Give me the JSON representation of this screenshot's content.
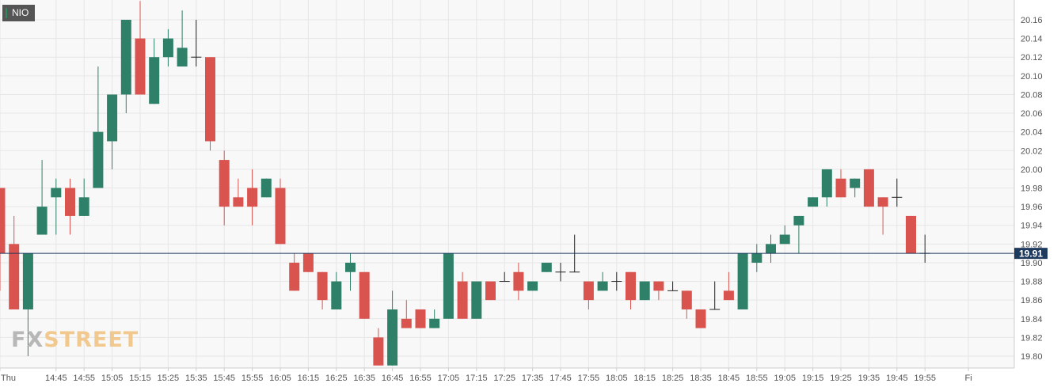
{
  "symbol": "NIO",
  "logo": {
    "part1": "FX",
    "part2": "STREET"
  },
  "colors": {
    "up": "#2e8069",
    "down": "#d9534f",
    "doji": "#222222",
    "last_price_line": "#1f3a5f",
    "grid": "#e6e6e6"
  },
  "chart_data": {
    "type": "candlestick",
    "ylim": [
      19.79,
      20.18
    ],
    "y_ticks": [
      "19.80",
      "19.82",
      "19.84",
      "19.86",
      "19.88",
      "19.90",
      "19.92",
      "19.94",
      "19.96",
      "19.98",
      "20.00",
      "20.02",
      "20.04",
      "20.06",
      "20.08",
      "20.10",
      "20.12",
      "20.14",
      "20.16"
    ],
    "x_ticks": [
      {
        "label": "Thu",
        "i": 0
      },
      {
        "label": "14:45",
        "i": 4
      },
      {
        "label": "14:55",
        "i": 6
      },
      {
        "label": "15:05",
        "i": 8
      },
      {
        "label": "15:15",
        "i": 10
      },
      {
        "label": "15:25",
        "i": 12
      },
      {
        "label": "15:35",
        "i": 14
      },
      {
        "label": "15:45",
        "i": 16
      },
      {
        "label": "15:55",
        "i": 18
      },
      {
        "label": "16:05",
        "i": 20
      },
      {
        "label": "16:15",
        "i": 22
      },
      {
        "label": "16:25",
        "i": 24
      },
      {
        "label": "16:35",
        "i": 26
      },
      {
        "label": "16:45",
        "i": 28
      },
      {
        "label": "16:55",
        "i": 30
      },
      {
        "label": "17:05",
        "i": 32
      },
      {
        "label": "17:15",
        "i": 34
      },
      {
        "label": "17:25",
        "i": 36
      },
      {
        "label": "17:35",
        "i": 38
      },
      {
        "label": "17:45",
        "i": 40
      },
      {
        "label": "17:55",
        "i": 42
      },
      {
        "label": "18:05",
        "i": 44
      },
      {
        "label": "18:15",
        "i": 46
      },
      {
        "label": "18:25",
        "i": 48
      },
      {
        "label": "18:35",
        "i": 50
      },
      {
        "label": "18:45",
        "i": 52
      },
      {
        "label": "18:55",
        "i": 54
      },
      {
        "label": "19:05",
        "i": 56
      },
      {
        "label": "19:15",
        "i": 58
      },
      {
        "label": "19:25",
        "i": 60
      },
      {
        "label": "19:35",
        "i": 62
      },
      {
        "label": "19:45",
        "i": 64
      },
      {
        "label": "19:55",
        "i": 66
      },
      {
        "label": "Fi",
        "i": 69.1
      }
    ],
    "last_price": 19.91,
    "last_price_label": "19.91",
    "candles": [
      {
        "o": 19.98,
        "h": 19.98,
        "l": 19.87,
        "c": 19.91
      },
      {
        "o": 19.92,
        "h": 19.95,
        "l": 19.85,
        "c": 19.85
      },
      {
        "o": 19.85,
        "h": 19.91,
        "l": 19.8,
        "c": 19.91
      },
      {
        "o": 19.93,
        "h": 20.01,
        "l": 19.93,
        "c": 19.96
      },
      {
        "o": 19.97,
        "h": 19.99,
        "l": 19.93,
        "c": 19.98
      },
      {
        "o": 19.98,
        "h": 19.99,
        "l": 19.93,
        "c": 19.95
      },
      {
        "o": 19.95,
        "h": 19.99,
        "l": 19.95,
        "c": 19.97
      },
      {
        "o": 19.98,
        "h": 20.11,
        "l": 19.98,
        "c": 20.04
      },
      {
        "o": 20.03,
        "h": 20.08,
        "l": 20.0,
        "c": 20.08
      },
      {
        "o": 20.08,
        "h": 20.16,
        "l": 20.06,
        "c": 20.16
      },
      {
        "o": 20.14,
        "h": 20.18,
        "l": 20.08,
        "c": 20.08
      },
      {
        "o": 20.07,
        "h": 20.14,
        "l": 20.07,
        "c": 20.12
      },
      {
        "o": 20.12,
        "h": 20.15,
        "l": 20.11,
        "c": 20.14
      },
      {
        "o": 20.11,
        "h": 20.17,
        "l": 20.11,
        "c": 20.13
      },
      {
        "o": 20.12,
        "h": 20.16,
        "l": 20.11,
        "c": 20.12
      },
      {
        "o": 20.12,
        "h": 20.12,
        "l": 20.02,
        "c": 20.03
      },
      {
        "o": 20.01,
        "h": 20.02,
        "l": 19.94,
        "c": 19.96
      },
      {
        "o": 19.97,
        "h": 19.99,
        "l": 19.96,
        "c": 19.96
      },
      {
        "o": 19.98,
        "h": 20.0,
        "l": 19.94,
        "c": 19.96
      },
      {
        "o": 19.97,
        "h": 19.99,
        "l": 19.97,
        "c": 19.99
      },
      {
        "o": 19.98,
        "h": 19.99,
        "l": 19.92,
        "c": 19.92
      },
      {
        "o": 19.9,
        "h": 19.91,
        "l": 19.87,
        "c": 19.87
      },
      {
        "o": 19.91,
        "h": 19.91,
        "l": 19.89,
        "c": 19.89
      },
      {
        "o": 19.89,
        "h": 19.89,
        "l": 19.85,
        "c": 19.86
      },
      {
        "o": 19.85,
        "h": 19.89,
        "l": 19.85,
        "c": 19.88
      },
      {
        "o": 19.89,
        "h": 19.91,
        "l": 19.87,
        "c": 19.9
      },
      {
        "o": 19.89,
        "h": 19.89,
        "l": 19.84,
        "c": 19.84
      },
      {
        "o": 19.82,
        "h": 19.83,
        "l": 19.79,
        "c": 19.79
      },
      {
        "o": 19.79,
        "h": 19.87,
        "l": 19.79,
        "c": 19.85
      },
      {
        "o": 19.84,
        "h": 19.86,
        "l": 19.83,
        "c": 19.83
      },
      {
        "o": 19.85,
        "h": 19.85,
        "l": 19.83,
        "c": 19.83
      },
      {
        "o": 19.83,
        "h": 19.85,
        "l": 19.83,
        "c": 19.84
      },
      {
        "o": 19.84,
        "h": 19.91,
        "l": 19.84,
        "c": 19.91
      },
      {
        "o": 19.88,
        "h": 19.89,
        "l": 19.84,
        "c": 19.84
      },
      {
        "o": 19.84,
        "h": 19.88,
        "l": 19.84,
        "c": 19.88
      },
      {
        "o": 19.88,
        "h": 19.88,
        "l": 19.86,
        "c": 19.86
      },
      {
        "o": 19.88,
        "h": 19.89,
        "l": 19.88,
        "c": 19.88
      },
      {
        "o": 19.89,
        "h": 19.9,
        "l": 19.86,
        "c": 19.87
      },
      {
        "o": 19.87,
        "h": 19.88,
        "l": 19.87,
        "c": 19.88
      },
      {
        "o": 19.89,
        "h": 19.9,
        "l": 19.89,
        "c": 19.9
      },
      {
        "o": 19.89,
        "h": 19.9,
        "l": 19.88,
        "c": 19.89
      },
      {
        "o": 19.89,
        "h": 19.93,
        "l": 19.89,
        "c": 19.89
      },
      {
        "o": 19.88,
        "h": 19.88,
        "l": 19.85,
        "c": 19.86
      },
      {
        "o": 19.87,
        "h": 19.89,
        "l": 19.87,
        "c": 19.88
      },
      {
        "o": 19.88,
        "h": 19.89,
        "l": 19.87,
        "c": 19.88
      },
      {
        "o": 19.89,
        "h": 19.89,
        "l": 19.85,
        "c": 19.86
      },
      {
        "o": 19.86,
        "h": 19.88,
        "l": 19.86,
        "c": 19.88
      },
      {
        "o": 19.88,
        "h": 19.88,
        "l": 19.86,
        "c": 19.87
      },
      {
        "o": 19.87,
        "h": 19.88,
        "l": 19.87,
        "c": 19.87
      },
      {
        "o": 19.87,
        "h": 19.87,
        "l": 19.84,
        "c": 19.85
      },
      {
        "o": 19.85,
        "h": 19.85,
        "l": 19.83,
        "c": 19.83
      },
      {
        "o": 19.85,
        "h": 19.88,
        "l": 19.85,
        "c": 19.85
      },
      {
        "o": 19.87,
        "h": 19.89,
        "l": 19.86,
        "c": 19.86
      },
      {
        "o": 19.85,
        "h": 19.91,
        "l": 19.85,
        "c": 19.91
      },
      {
        "o": 19.9,
        "h": 19.92,
        "l": 19.89,
        "c": 19.91
      },
      {
        "o": 19.91,
        "h": 19.93,
        "l": 19.9,
        "c": 19.92
      },
      {
        "o": 19.92,
        "h": 19.94,
        "l": 19.92,
        "c": 19.93
      },
      {
        "o": 19.94,
        "h": 19.95,
        "l": 19.91,
        "c": 19.95
      },
      {
        "o": 19.96,
        "h": 19.97,
        "l": 19.96,
        "c": 19.97
      },
      {
        "o": 19.97,
        "h": 20.0,
        "l": 19.96,
        "c": 20.0
      },
      {
        "o": 19.99,
        "h": 20.0,
        "l": 19.97,
        "c": 19.97
      },
      {
        "o": 19.98,
        "h": 19.99,
        "l": 19.97,
        "c": 19.99
      },
      {
        "o": 20.0,
        "h": 20.0,
        "l": 19.96,
        "c": 19.96
      },
      {
        "o": 19.97,
        "h": 19.97,
        "l": 19.93,
        "c": 19.96
      },
      {
        "o": 19.97,
        "h": 19.99,
        "l": 19.96,
        "c": 19.97
      },
      {
        "o": 19.95,
        "h": 19.95,
        "l": 19.91,
        "c": 19.91
      },
      {
        "o": 19.91,
        "h": 19.93,
        "l": 19.9,
        "c": 19.91
      }
    ]
  }
}
